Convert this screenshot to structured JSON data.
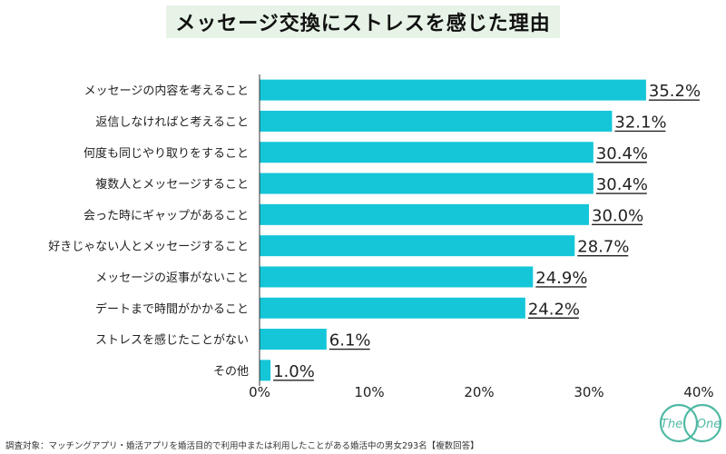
{
  "title": "メッセージ交換にストレスを感じた理由",
  "footnote": "調査対象：マッチングアプリ・婚活アプリを婚活目的で利用中または利用したことがある婚活中の男女293名【複数回答】",
  "logo": {
    "left_text": "The",
    "right_text": "One",
    "color": "#4fb9a4"
  },
  "colors": {
    "bar": "#14c6d8",
    "title_bg": "#e6f3e6",
    "axis": "#333333"
  },
  "chart_data": {
    "type": "bar",
    "orientation": "horizontal",
    "title": "メッセージ交換にストレスを感じた理由",
    "categories": [
      "メッセージの内容を考えること",
      "返信しなければと考えること",
      "何度も同じやり取りをすること",
      "複数人とメッセージすること",
      "会った時にギャップがあること",
      "好きじゃない人とメッセージすること",
      "メッセージの返事がないこと",
      "デートまで時間がかかること",
      "ストレスを感じたことがない",
      "その他"
    ],
    "values": [
      35.2,
      32.1,
      30.4,
      30.4,
      30.0,
      28.7,
      24.9,
      24.2,
      6.1,
      1.0
    ],
    "value_labels": [
      "35.2%",
      "32.1%",
      "30.4%",
      "30.4%",
      "30.0%",
      "28.7%",
      "24.9%",
      "24.2%",
      "6.1%",
      "1.0%"
    ],
    "xlim": [
      0,
      40
    ],
    "xticks": [
      0,
      10,
      20,
      30,
      40
    ],
    "xtick_labels": [
      "0%",
      "10%",
      "20%",
      "30%",
      "40%"
    ],
    "xlabel": "",
    "ylabel": "",
    "grid": false
  }
}
